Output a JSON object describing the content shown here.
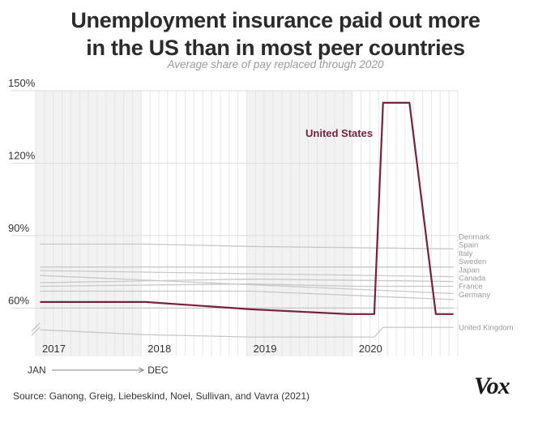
{
  "title_lines": [
    "Unemployment insurance paid out more",
    "in the US than in most peer countries"
  ],
  "subtitle": "Average share of pay replaced through 2020",
  "source": "Source: Ganong, Greig, Liebeskind, Noel, Sullivan, and Vavra (2021)",
  "logo_text": "Vox",
  "colors": {
    "highlight": "#7a1f3d",
    "other": "#c8c8c8",
    "grid": "#e6e6e6",
    "shade": "#f2f2f2",
    "axis_text": "#333333",
    "label_text": "#9a9a9a"
  },
  "chart_data": {
    "type": "line",
    "title": "Unemployment insurance paid out more in the US than in most peer countries",
    "subtitle": "Average share of pay replaced through 2020",
    "y_tick_labels": [
      "60%",
      "90%",
      "120%",
      "150%"
    ],
    "y_ticks": [
      60,
      90,
      120,
      150
    ],
    "ylim": [
      40,
      150
    ],
    "y_axis_break": true,
    "x_year_labels": [
      "2017",
      "2018",
      "2019",
      "2020"
    ],
    "x_start": "2017-01",
    "x_end": "2020-12",
    "shaded_years": [
      "2017",
      "2019"
    ],
    "month_legend": {
      "from": "JAN",
      "to": "DEC"
    },
    "grid": true,
    "series": [
      {
        "name": "United States",
        "highlight": true,
        "x": [
          "2017-01",
          "2017-10",
          "2018-01",
          "2019-01",
          "2019-12",
          "2020-03",
          "2020-04",
          "2020-07",
          "2020-10",
          "2020-12"
        ],
        "y": [
          62.5,
          62.5,
          62.5,
          59.5,
          57.5,
          57.5,
          145,
          145,
          57.5,
          57.5
        ]
      },
      {
        "name": "Denmark",
        "x": [
          "2017-01",
          "2018-01",
          "2019-01",
          "2020-12"
        ],
        "y": [
          86.5,
          86.5,
          85.5,
          84.5
        ]
      },
      {
        "name": "Spain",
        "x": [
          "2017-01",
          "2020-12"
        ],
        "y": [
          77,
          77
        ]
      },
      {
        "name": "Italy",
        "x": [
          "2017-01",
          "2020-12"
        ],
        "y": [
          75.5,
          73
        ]
      },
      {
        "name": "Sweden",
        "x": [
          "2017-01",
          "2019-01",
          "2020-12"
        ],
        "y": [
          70.5,
          72,
          71
        ]
      },
      {
        "name": "Japan",
        "x": [
          "2017-01",
          "2019-01",
          "2020-01",
          "2020-12"
        ],
        "y": [
          69,
          70,
          69,
          69
        ]
      },
      {
        "name": "Canada",
        "x": [
          "2017-01",
          "2020-12"
        ],
        "y": [
          73.5,
          66
        ]
      },
      {
        "name": "France",
        "x": [
          "2017-01",
          "2019-01",
          "2020-12"
        ],
        "y": [
          67,
          67,
          63.5
        ]
      },
      {
        "name": "Germany",
        "x": [
          "2017-01",
          "2020-12"
        ],
        "y": [
          60,
          60
        ]
      },
      {
        "name": "United Kingdom",
        "x": [
          "2017-01",
          "2018-01",
          "2019-01",
          "2020-03",
          "2020-04",
          "2020-12"
        ],
        "y": [
          51,
          49,
          48,
          48,
          52,
          52
        ]
      }
    ],
    "series_labels": [
      "United States",
      "Denmark",
      "Spain",
      "Italy",
      "Sweden",
      "Japan",
      "Canada",
      "France",
      "Germany",
      "United Kingdom"
    ]
  }
}
